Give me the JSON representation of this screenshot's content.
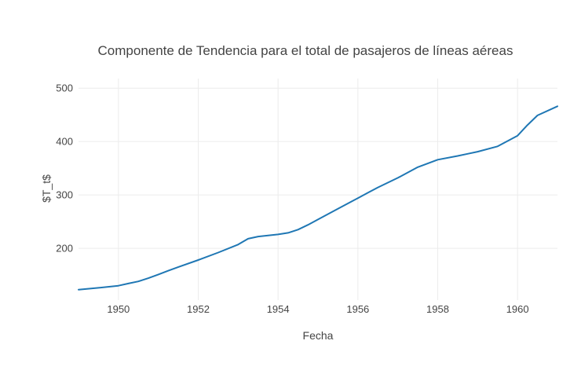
{
  "chart_data": {
    "type": "line",
    "title": "Componente de Tendencia para el total de pasajeros de líneas aéreas",
    "xlabel": "Fecha",
    "ylabel": "$T_t$",
    "xlim": [
      1949.0,
      1961.0
    ],
    "ylim": [
      103,
      518
    ],
    "x_ticks": [
      1950,
      1952,
      1954,
      1956,
      1958,
      1960
    ],
    "y_ticks": [
      200,
      300,
      400,
      500
    ],
    "grid": true,
    "series": [
      {
        "color": "#1f77b4",
        "x": [
          1949.0,
          1949.5,
          1950.0,
          1950.25,
          1950.5,
          1950.75,
          1951.0,
          1951.25,
          1951.5,
          1952.0,
          1952.5,
          1953.0,
          1953.25,
          1953.5,
          1953.75,
          1954.0,
          1954.25,
          1954.5,
          1954.75,
          1955.0,
          1955.5,
          1956.0,
          1956.25,
          1956.5,
          1957.0,
          1957.5,
          1958.0,
          1958.5,
          1958.75,
          1959.0,
          1959.5,
          1960.0,
          1960.25,
          1960.5,
          1961.0
        ],
        "values": [
          122.5,
          126,
          130,
          134,
          138,
          144,
          151,
          158,
          165,
          178,
          192,
          207,
          218,
          222,
          224,
          226,
          229,
          235,
          244,
          254,
          274,
          294,
          304,
          314,
          332,
          352,
          366,
          373,
          377,
          381,
          391,
          411,
          431,
          449,
          466
        ]
      }
    ]
  }
}
